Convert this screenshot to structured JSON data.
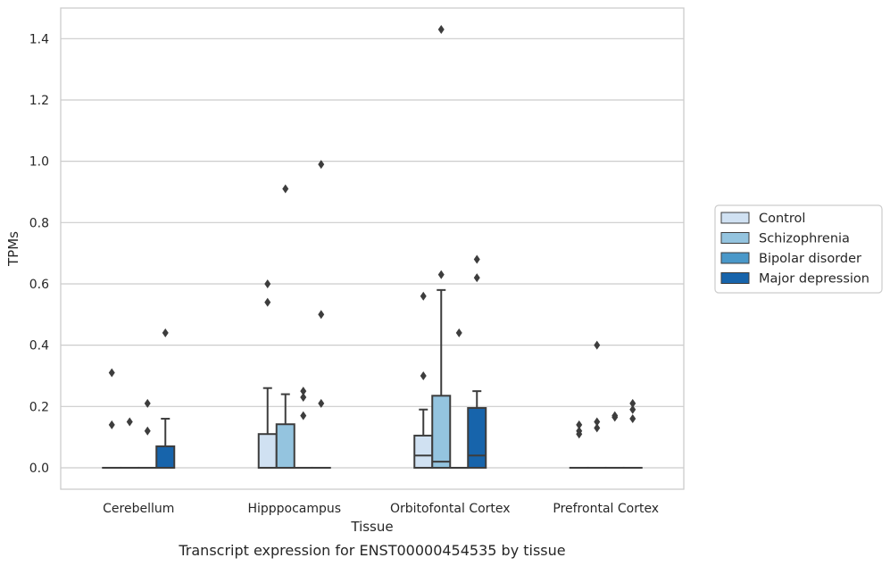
{
  "chart_data": {
    "type": "box",
    "title": "",
    "caption": "Transcript expression for ENST00000454535 by tissue",
    "xlabel": "Tissue",
    "ylabel": "TPMs",
    "ylim": [
      -0.07,
      1.5
    ],
    "yticks": [
      0.0,
      0.2,
      0.4,
      0.6,
      0.8,
      1.0,
      1.2,
      1.4
    ],
    "ytick_labels": [
      "0.0",
      "0.2",
      "0.4",
      "0.6",
      "0.8",
      "1.0",
      "1.2",
      "1.4"
    ],
    "grid": "horizontal",
    "legend_position": "right",
    "categories": [
      "Cerebellum",
      "Hipppocampus",
      "Orbitofontal Cortex",
      "Prefrontal Cortex"
    ],
    "series": [
      {
        "name": "Control",
        "color": "#d0e1f2",
        "boxes": [
          {
            "q1": 0,
            "median": 0,
            "q3": 0,
            "whisker_low": 0,
            "whisker_high": 0,
            "outliers": [
              0.14,
              0.31
            ]
          },
          {
            "q1": 0,
            "median": 0,
            "q3": 0.11,
            "whisker_low": 0,
            "whisker_high": 0.26,
            "outliers": [
              0.54,
              0.6
            ]
          },
          {
            "q1": 0,
            "median": 0.04,
            "q3": 0.105,
            "whisker_low": 0,
            "whisker_high": 0.19,
            "outliers": [
              0.3,
              0.56
            ]
          },
          {
            "q1": 0,
            "median": 0,
            "q3": 0,
            "whisker_low": 0,
            "whisker_high": 0,
            "outliers": [
              0.11,
              0.12,
              0.14
            ]
          }
        ]
      },
      {
        "name": "Schizophrenia",
        "color": "#94c4df",
        "boxes": [
          {
            "q1": 0,
            "median": 0,
            "q3": 0,
            "whisker_low": 0,
            "whisker_high": 0,
            "outliers": [
              0.15
            ]
          },
          {
            "q1": 0,
            "median": 0,
            "q3": 0.142,
            "whisker_low": 0,
            "whisker_high": 0.24,
            "outliers": [
              0.91
            ]
          },
          {
            "q1": 0,
            "median": 0.02,
            "q3": 0.235,
            "whisker_low": 0,
            "whisker_high": 0.58,
            "outliers": [
              0.63,
              1.43
            ]
          },
          {
            "q1": 0,
            "median": 0,
            "q3": 0,
            "whisker_low": 0,
            "whisker_high": 0,
            "outliers": [
              0.13,
              0.15,
              0.4
            ]
          }
        ]
      },
      {
        "name": "Bipolar disorder",
        "color": "#4a98c9",
        "boxes": [
          {
            "q1": 0,
            "median": 0,
            "q3": 0,
            "whisker_low": 0,
            "whisker_high": 0,
            "outliers": [
              0.12,
              0.21
            ]
          },
          {
            "q1": 0,
            "median": 0,
            "q3": 0,
            "whisker_low": 0,
            "whisker_high": 0,
            "outliers": [
              0.17,
              0.23,
              0.25
            ]
          },
          {
            "q1": 0,
            "median": 0,
            "q3": 0,
            "whisker_low": 0,
            "whisker_high": 0,
            "outliers": [
              0.44
            ]
          },
          {
            "q1": 0,
            "median": 0,
            "q3": 0,
            "whisker_low": 0,
            "whisker_high": 0,
            "outliers": [
              0.165,
              0.17
            ]
          }
        ]
      },
      {
        "name": "Major depression",
        "color": "#1764ab",
        "boxes": [
          {
            "q1": 0,
            "median": 0,
            "q3": 0.07,
            "whisker_low": 0,
            "whisker_high": 0.16,
            "outliers": [
              0.44
            ]
          },
          {
            "q1": 0,
            "median": 0,
            "q3": 0,
            "whisker_low": 0,
            "whisker_high": 0,
            "outliers": [
              0.21,
              0.5,
              0.99
            ]
          },
          {
            "q1": 0,
            "median": 0.04,
            "q3": 0.195,
            "whisker_low": 0,
            "whisker_high": 0.25,
            "outliers": [
              0.62,
              0.68
            ]
          },
          {
            "q1": 0,
            "median": 0,
            "q3": 0,
            "whisker_low": 0,
            "whisker_high": 0,
            "outliers": [
              0.16,
              0.19,
              0.21
            ]
          }
        ]
      }
    ]
  }
}
